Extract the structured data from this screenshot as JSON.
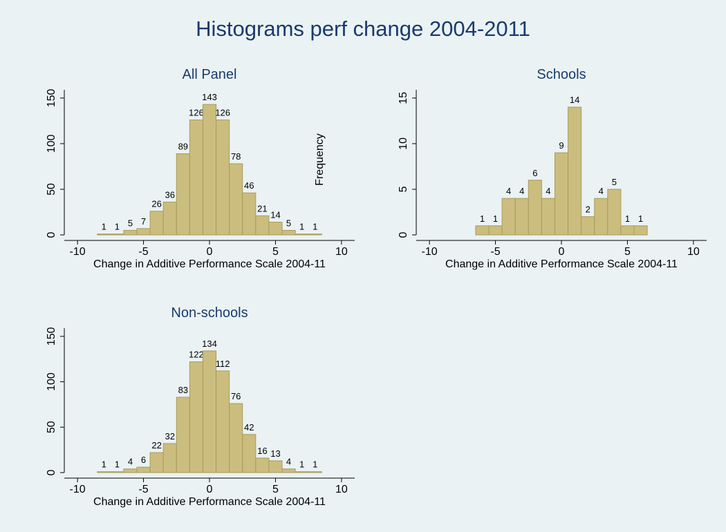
{
  "title": "Histograms perf change 2004-2011",
  "chart_data": [
    {
      "type": "histogram",
      "title": "All Panel",
      "x_label": "Change in Additive Performance Scale 2004-11",
      "y_label": "Frequency",
      "bins": [
        -8.5,
        -7.5,
        -6.5,
        -5.5,
        -4.5,
        -3.5,
        -2.5,
        -1.5,
        -0.5,
        0.5,
        1.5,
        2.5,
        3.5,
        4.5,
        5.5,
        6.5,
        7.5,
        8.5
      ],
      "values": [
        1,
        1,
        5,
        7,
        26,
        36,
        89,
        126,
        143,
        126,
        78,
        46,
        21,
        14,
        5,
        1,
        1
      ],
      "color": "#cbbd7e",
      "xlim": [
        -11,
        11
      ],
      "xticks": [
        -10,
        -5,
        0,
        5,
        10
      ],
      "ylim": [
        0,
        159
      ],
      "yticks": [
        0,
        50,
        100,
        150
      ]
    },
    {
      "type": "histogram",
      "title": "Schools",
      "x_label": "Change in Additive Performance Scale 2004-11",
      "bins": [
        -6.5,
        -5.5,
        -4.5,
        -3.5,
        -2.5,
        -1.5,
        -0.5,
        0.5,
        1.5,
        2.5,
        3.5,
        4.5,
        5.5,
        6.5
      ],
      "values": [
        1,
        1,
        4,
        4,
        6,
        4,
        9,
        14,
        2,
        4,
        5,
        1,
        1
      ],
      "color": "#cbbd7e",
      "xlim": [
        -11,
        11
      ],
      "xticks": [
        -10,
        -5,
        0,
        5,
        10
      ],
      "ylim": [
        0,
        15.9
      ],
      "yticks": [
        0,
        5,
        10,
        15
      ]
    },
    {
      "type": "histogram",
      "title": "Non-schools",
      "x_label": "Change in Additive Performance Scale 2004-11",
      "bins": [
        -8.5,
        -7.5,
        -6.5,
        -5.5,
        -4.5,
        -3.5,
        -2.5,
        -1.5,
        -0.5,
        0.5,
        1.5,
        2.5,
        3.5,
        4.5,
        5.5,
        6.5,
        7.5,
        8.5
      ],
      "values": [
        1,
        1,
        4,
        6,
        22,
        32,
        83,
        122,
        134,
        112,
        76,
        42,
        16,
        13,
        4,
        1,
        1
      ],
      "color": "#cbbd7e",
      "xlim": [
        -11,
        11
      ],
      "xticks": [
        -10,
        -5,
        0,
        5,
        10
      ],
      "ylim": [
        0,
        159
      ],
      "yticks": [
        0,
        50,
        100,
        150
      ]
    }
  ]
}
